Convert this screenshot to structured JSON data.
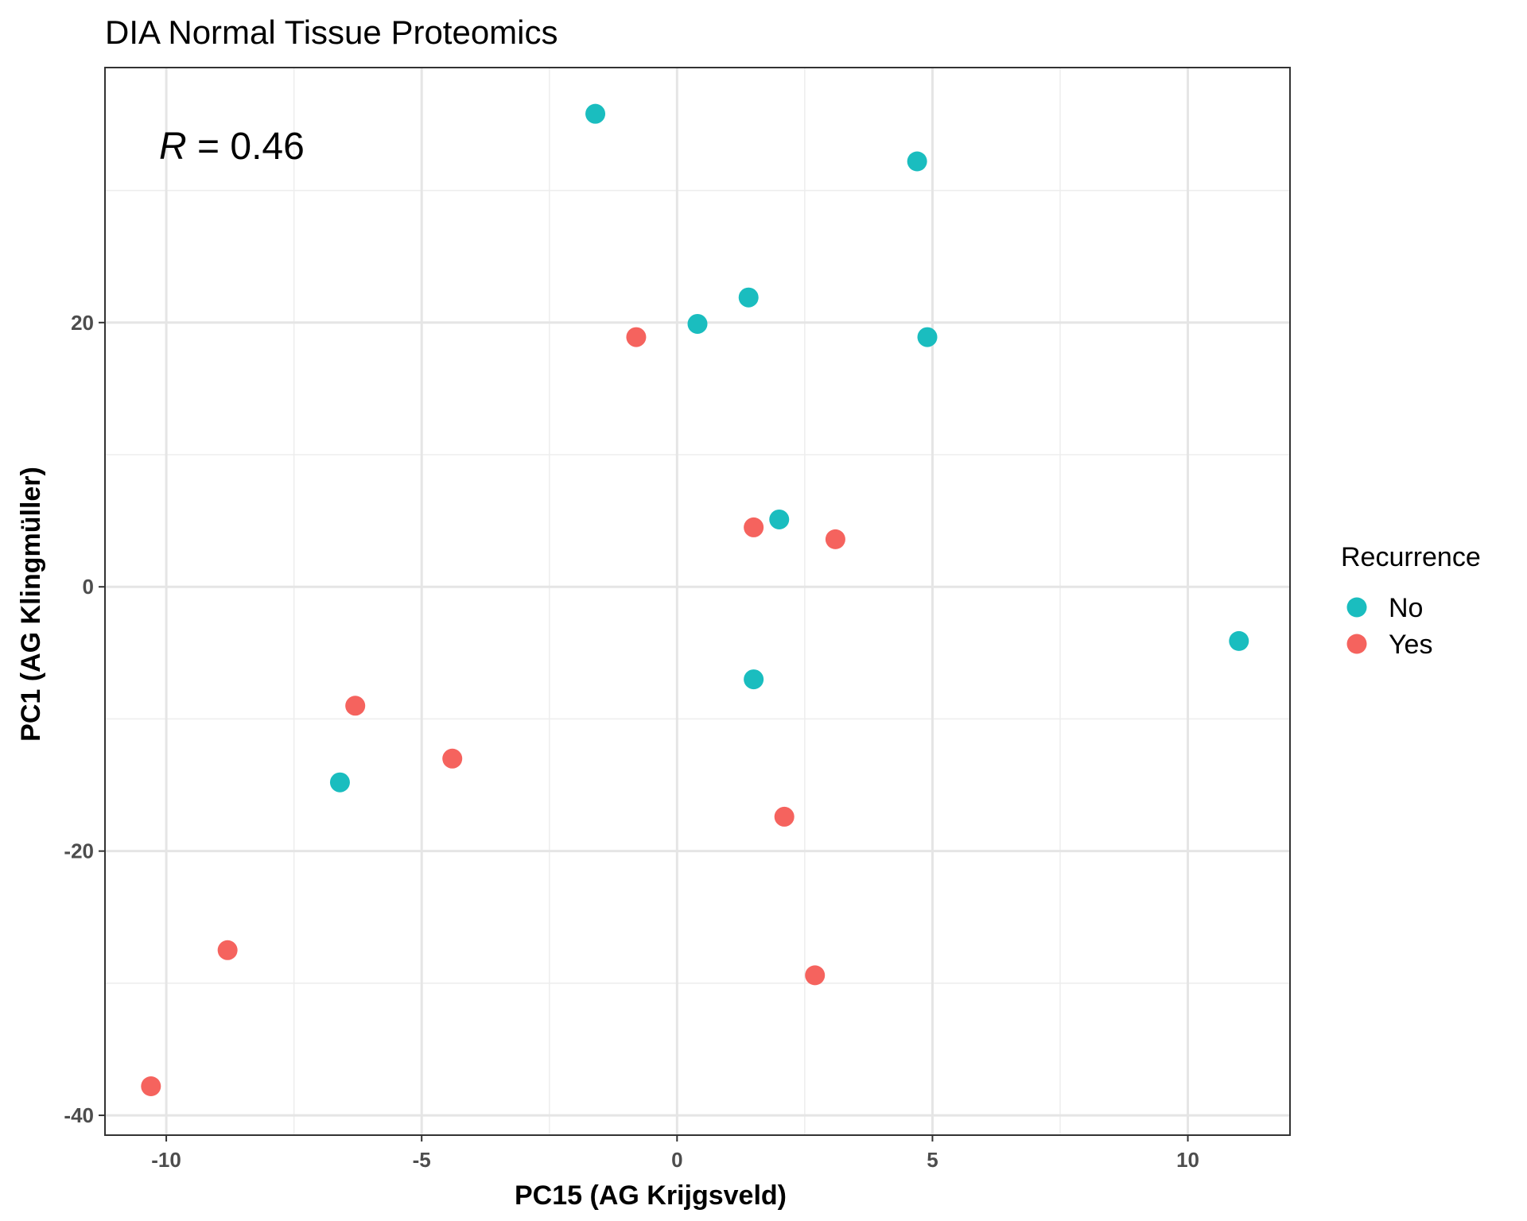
{
  "chart_data": {
    "type": "scatter",
    "title": "DIA Normal Tissue Proteomics",
    "xlabel": "PC15 (AG Krijgsveld)",
    "ylabel": "PC1 (AG Klingmüller)",
    "xlim": [
      -11.2,
      12.0
    ],
    "ylim": [
      -41.5,
      39.3
    ],
    "x_ticks": [
      -10,
      -5,
      0,
      5,
      10
    ],
    "x_tick_labels": [
      "-10",
      "-5",
      "0",
      "5",
      "10"
    ],
    "y_ticks": [
      -40,
      -20,
      0,
      20
    ],
    "y_tick_labels": [
      "-40",
      "-20",
      "0",
      "20"
    ],
    "grid": true,
    "annotation": {
      "italic": "R",
      "rest": " = 0.46"
    },
    "legend": {
      "title": "Recurrence",
      "position": "right"
    },
    "series": [
      {
        "name": "No",
        "color": "#1ABDBF",
        "points": [
          {
            "x": -1.6,
            "y": 35.8
          },
          {
            "x": 4.7,
            "y": 32.2
          },
          {
            "x": 1.4,
            "y": 21.9
          },
          {
            "x": 0.4,
            "y": 19.9
          },
          {
            "x": 4.9,
            "y": 18.9
          },
          {
            "x": 2.0,
            "y": 5.1
          },
          {
            "x": 11.0,
            "y": -4.1
          },
          {
            "x": 1.5,
            "y": -7.0
          },
          {
            "x": -6.6,
            "y": -14.8
          }
        ]
      },
      {
        "name": "Yes",
        "color": "#F5635E",
        "points": [
          {
            "x": -0.8,
            "y": 18.9
          },
          {
            "x": 1.5,
            "y": 4.5
          },
          {
            "x": 3.1,
            "y": 3.6
          },
          {
            "x": -6.3,
            "y": -9.0
          },
          {
            "x": -4.4,
            "y": -13.0
          },
          {
            "x": 2.1,
            "y": -17.4
          },
          {
            "x": -8.8,
            "y": -27.5
          },
          {
            "x": 2.7,
            "y": -29.4
          },
          {
            "x": -10.3,
            "y": -37.8
          }
        ]
      }
    ]
  }
}
